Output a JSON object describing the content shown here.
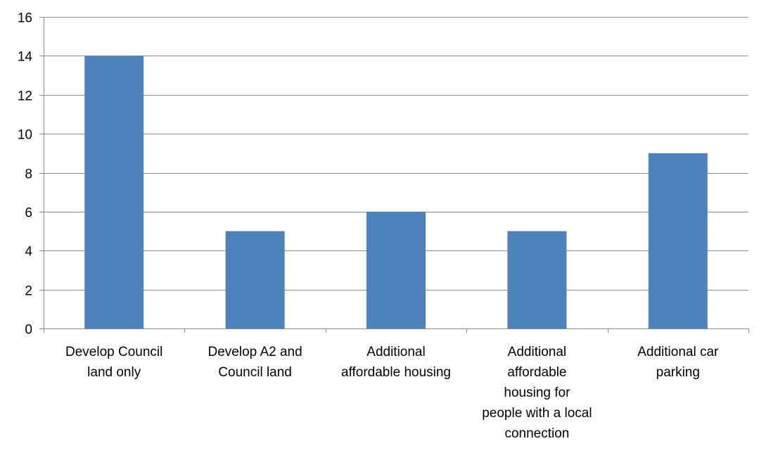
{
  "chart_data": {
    "type": "bar",
    "title": "",
    "xlabel": "",
    "ylabel": "",
    "categories": [
      "Develop Council land only",
      "Develop A2 and Council land",
      "Additional affordable housing",
      "Additional affordable housing for people with a local connection",
      "Additional car parking"
    ],
    "category_lines": [
      [
        "Develop Council",
        "land only"
      ],
      [
        "Develop A2 and",
        "Council land"
      ],
      [
        "Additional",
        "affordable housing"
      ],
      [
        "Additional",
        "affordable",
        "housing for",
        "people with a local",
        "connection"
      ],
      [
        "Additional car",
        "parking"
      ]
    ],
    "values": [
      14,
      5,
      6,
      5,
      9
    ],
    "ylim": [
      0,
      16
    ],
    "yticks": [
      0,
      2,
      4,
      6,
      8,
      10,
      12,
      14,
      16
    ],
    "grid": true,
    "legend": "none",
    "bar_color": "#4f81bd"
  }
}
